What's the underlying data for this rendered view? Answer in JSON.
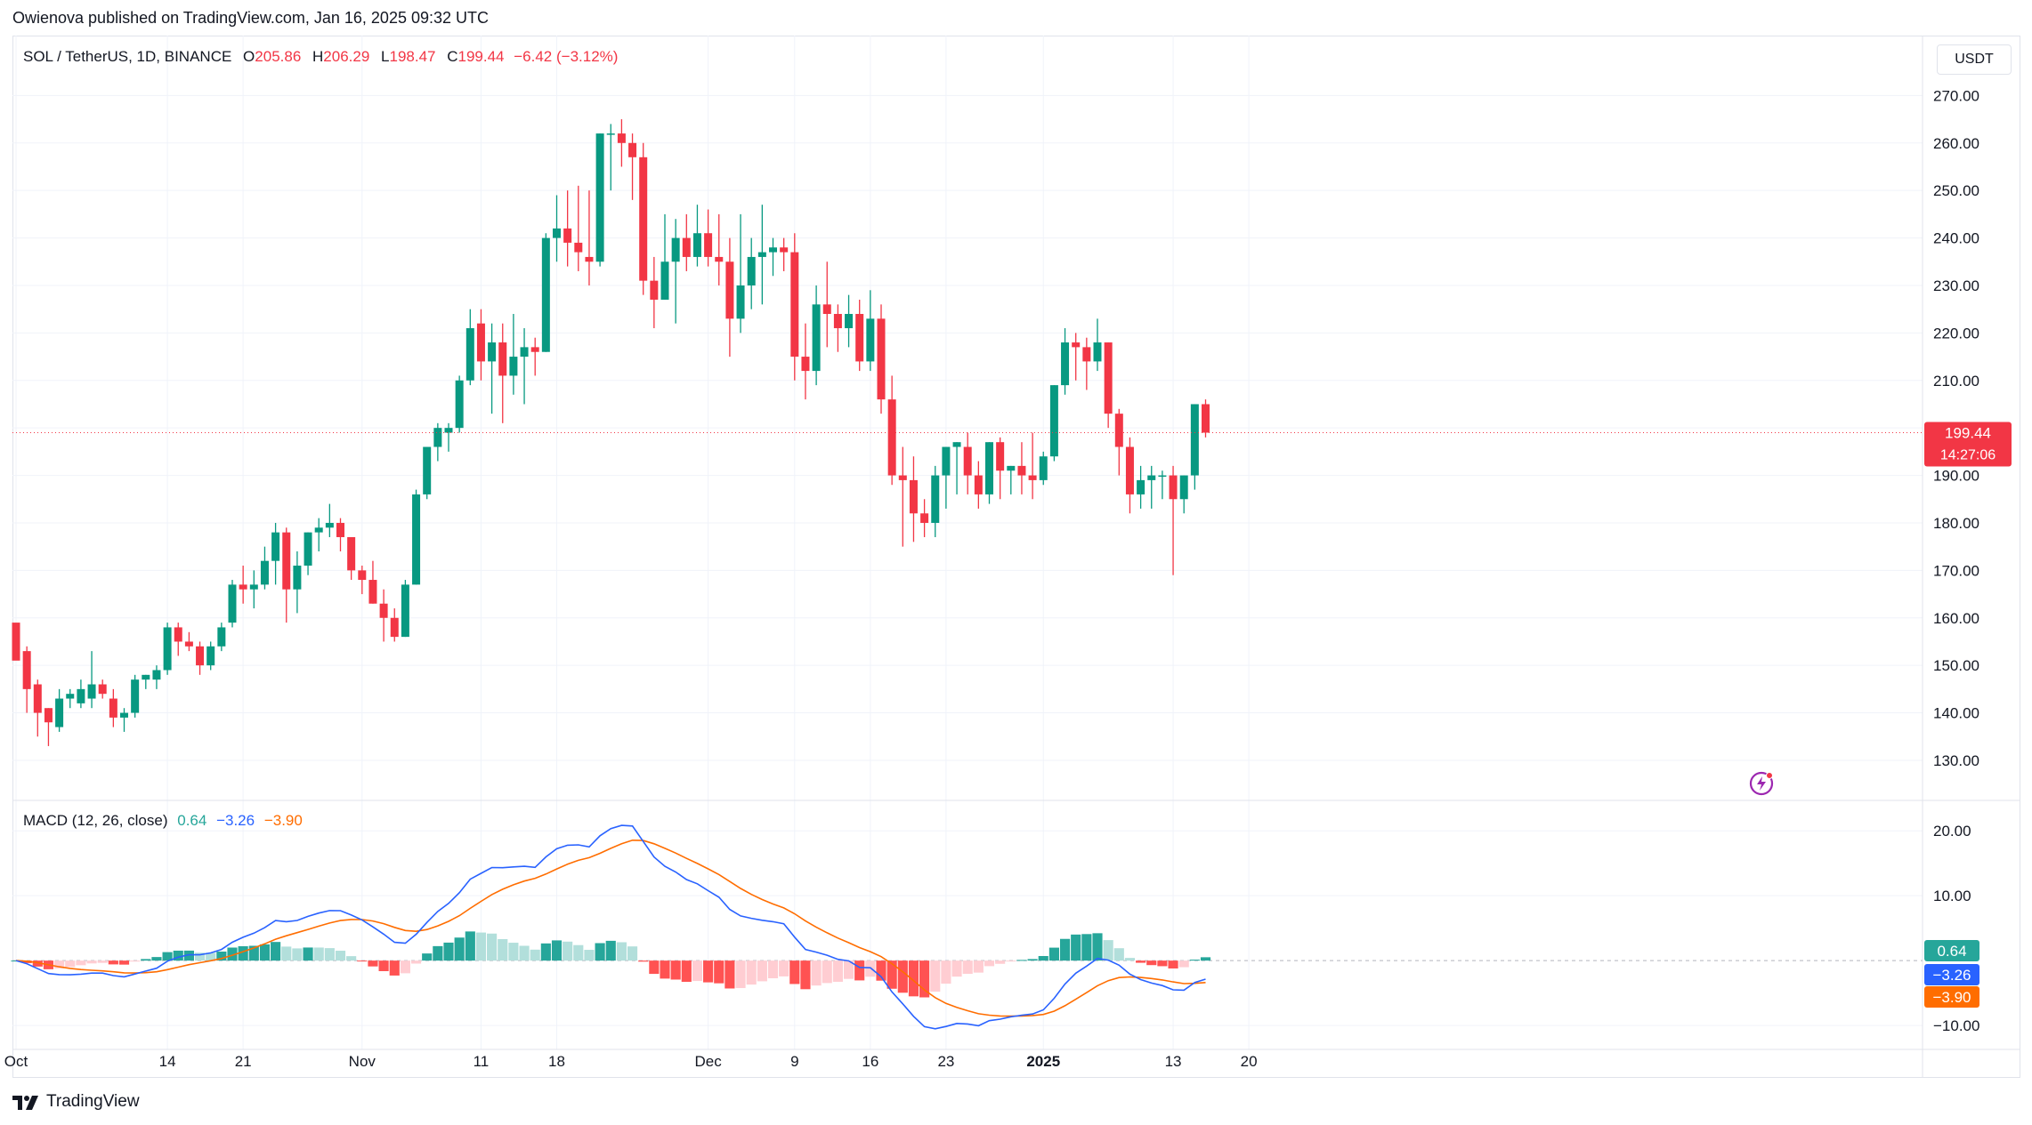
{
  "header": {
    "publisher": "Owienova published on TradingView.com, Jan 16, 2025 09:32 UTC"
  },
  "legend": {
    "symbol": "SOL / TetherUS, 1D, BINANCE",
    "o_label": "O",
    "o_value": "205.86",
    "h_label": "H",
    "h_value": "206.29",
    "l_label": "L",
    "l_value": "198.47",
    "c_label": "C",
    "c_value": "199.44",
    "change": "−6.42 (−3.12%)"
  },
  "currency_button": "USDT",
  "macd_legend": {
    "title": "MACD (12, 26, close)",
    "hist": "0.64",
    "macd": "−3.26",
    "signal": "−3.90"
  },
  "footer": {
    "brand": "TradingView"
  },
  "colors": {
    "up": "#089981",
    "down": "#f23645",
    "hist_up_strong": "#26a69a",
    "hist_up_weak": "#b2dfdb",
    "hist_down_strong": "#ff5252",
    "hist_down_weak": "#ffcdd2",
    "macd_line": "#2962ff",
    "signal_line": "#ff6d00"
  },
  "chart_data": [
    {
      "type": "candlestick",
      "title": "SOL / TetherUS, 1D, BINANCE",
      "x_tick_labels": [
        "Oct",
        "14",
        "21",
        "Nov",
        "11",
        "18",
        "Dec",
        "9",
        "16",
        "23",
        "2025",
        "13",
        "20"
      ],
      "y_tick_labels": [
        "270.00",
        "260.00",
        "250.00",
        "240.00",
        "230.00",
        "220.00",
        "210.00",
        "200.00",
        "190.00",
        "180.00",
        "170.00",
        "160.00",
        "150.00",
        "140.00",
        "130.00"
      ],
      "ylim": [
        122.5,
        277
      ],
      "last_price_label": "199.44",
      "countdown_label": "14:27:06",
      "candles_ohlc": [
        [
          159,
          157,
          157,
          151
        ],
        [
          153,
          154,
          140,
          145
        ],
        [
          146,
          147,
          135,
          140
        ],
        [
          141,
          141,
          133,
          138
        ],
        [
          137,
          145,
          136,
          143
        ],
        [
          143,
          145,
          141,
          144
        ],
        [
          142,
          147,
          141,
          145
        ],
        [
          143,
          153,
          141,
          146
        ],
        [
          146,
          147,
          143,
          144
        ],
        [
          143,
          145,
          137,
          139
        ],
        [
          139,
          141,
          136,
          140
        ],
        [
          140,
          148,
          139,
          147
        ],
        [
          147,
          148,
          145,
          148
        ],
        [
          147,
          150,
          145,
          149
        ],
        [
          149,
          159,
          148,
          158
        ],
        [
          158,
          159,
          152,
          155
        ],
        [
          155,
          157,
          153,
          154
        ],
        [
          154,
          155,
          148,
          150
        ],
        [
          150,
          155,
          149,
          154
        ],
        [
          154,
          159,
          153,
          158
        ],
        [
          159,
          168,
          158,
          167
        ],
        [
          167,
          171,
          163,
          166
        ],
        [
          166,
          170,
          162,
          167
        ],
        [
          167,
          175,
          166,
          172
        ],
        [
          172,
          180,
          167,
          178
        ],
        [
          178,
          179,
          159,
          166
        ],
        [
          166,
          174,
          161,
          171
        ],
        [
          171,
          178,
          169,
          178
        ],
        [
          178,
          181,
          174,
          179
        ],
        [
          179,
          184,
          177,
          180
        ],
        [
          180,
          181,
          174,
          177
        ],
        [
          177,
          176,
          168,
          170
        ],
        [
          170,
          171,
          165,
          168
        ],
        [
          168,
          172,
          163,
          163
        ],
        [
          163,
          166,
          155,
          160
        ],
        [
          160,
          162,
          155,
          156
        ],
        [
          156,
          168,
          156,
          167
        ],
        [
          167,
          187,
          167,
          186
        ],
        [
          186,
          196,
          185,
          196
        ],
        [
          196,
          201,
          193,
          200
        ],
        [
          199,
          201,
          195,
          200
        ],
        [
          200,
          211,
          199,
          210
        ],
        [
          210,
          225,
          209,
          221
        ],
        [
          222,
          225,
          210,
          214
        ],
        [
          214,
          222,
          203,
          218
        ],
        [
          218,
          222,
          201,
          211
        ],
        [
          211,
          224,
          207,
          215
        ],
        [
          215,
          221,
          205,
          217
        ],
        [
          217,
          219,
          211,
          216
        ],
        [
          216,
          241,
          216,
          240
        ],
        [
          240,
          249,
          235,
          242
        ],
        [
          242,
          250,
          234,
          239
        ],
        [
          239,
          251,
          233,
          237
        ],
        [
          236,
          250,
          230,
          235
        ],
        [
          235,
          262,
          234,
          262
        ],
        [
          262,
          264,
          250,
          262
        ],
        [
          262,
          265,
          255,
          260
        ],
        [
          260,
          262,
          248,
          257
        ],
        [
          257,
          260,
          228,
          231
        ],
        [
          231,
          236,
          221,
          227
        ],
        [
          227,
          245,
          227,
          235
        ],
        [
          235,
          244,
          222,
          240
        ],
        [
          240,
          245,
          233,
          236
        ],
        [
          236,
          247,
          234,
          241
        ],
        [
          241,
          246,
          234,
          236
        ],
        [
          236,
          245,
          230,
          235
        ],
        [
          235,
          240,
          215,
          223
        ],
        [
          223,
          245,
          220,
          230
        ],
        [
          230,
          240,
          225,
          236
        ],
        [
          236,
          247,
          226,
          237
        ],
        [
          237,
          240,
          232,
          238
        ],
        [
          238,
          240,
          233,
          237
        ],
        [
          237,
          241,
          210,
          215
        ],
        [
          215,
          222,
          206,
          212
        ],
        [
          212,
          230,
          209,
          226
        ],
        [
          226,
          235,
          217,
          224
        ],
        [
          224,
          226,
          216,
          221
        ],
        [
          221,
          228,
          217,
          224
        ],
        [
          224,
          227,
          212,
          214
        ],
        [
          214,
          229,
          212,
          223
        ],
        [
          223,
          226,
          203,
          206
        ],
        [
          206,
          211,
          188,
          190
        ],
        [
          190,
          196,
          175,
          189
        ],
        [
          189,
          194,
          176,
          182
        ],
        [
          182,
          185,
          177,
          180
        ],
        [
          180,
          192,
          177,
          190
        ],
        [
          190,
          196,
          183,
          196
        ],
        [
          196,
          197,
          186,
          197
        ],
        [
          196,
          199,
          186,
          190
        ],
        [
          190,
          193,
          183,
          186
        ],
        [
          186,
          197,
          184,
          197
        ],
        [
          197,
          198,
          185,
          191
        ],
        [
          191,
          192,
          186,
          192
        ],
        [
          192,
          197,
          186,
          190
        ],
        [
          190,
          199,
          185,
          189
        ],
        [
          189,
          195,
          188,
          194
        ],
        [
          194,
          209,
          193,
          209
        ],
        [
          209,
          221,
          207,
          218
        ],
        [
          218,
          220,
          210,
          217
        ],
        [
          217,
          219,
          208,
          214
        ],
        [
          214,
          223,
          212,
          218
        ],
        [
          218,
          218,
          200,
          203
        ],
        [
          203,
          204,
          190,
          196
        ],
        [
          196,
          198,
          182,
          186
        ],
        [
          186,
          192,
          183,
          189
        ],
        [
          189,
          192,
          183,
          190
        ],
        [
          190,
          191,
          185,
          190
        ],
        [
          190,
          192,
          169,
          185
        ],
        [
          185,
          190,
          182,
          190
        ],
        [
          190,
          205,
          187,
          205
        ],
        [
          205,
          206,
          198,
          199
        ]
      ]
    },
    {
      "type": "macd",
      "title": "MACD (12, 26, close)",
      "y_tick_labels": [
        "20.00",
        "10.00",
        "−10.00"
      ],
      "ylim": [
        -13,
        24
      ],
      "last_values": {
        "histogram": "0.64",
        "macd": "−3.26",
        "signal": "−3.90"
      }
    }
  ]
}
